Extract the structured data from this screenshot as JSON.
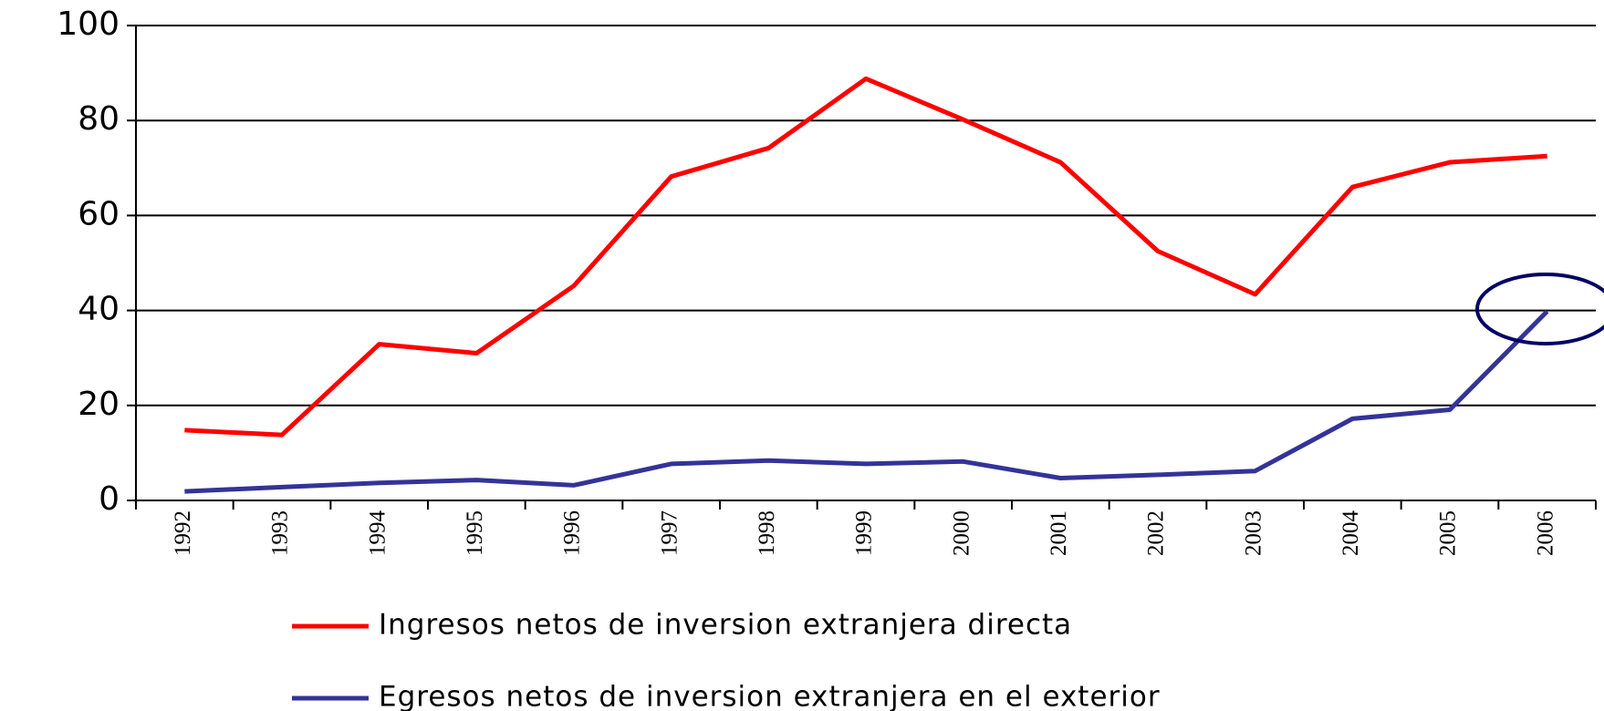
{
  "chart_data": {
    "type": "line",
    "categories": [
      "1992",
      "1993",
      "1994",
      "1995",
      "1996",
      "1997",
      "1998",
      "1999",
      "2000",
      "2001",
      "2002",
      "2003",
      "2004",
      "2005",
      "2006"
    ],
    "series": [
      {
        "name": "Ingresos netos de inversion extranjera directa",
        "color": "#ff0000",
        "values": [
          14.8,
          13.8,
          32.9,
          31,
          45.2,
          68.2,
          74.2,
          88.8,
          80.2,
          71.2,
          52.5,
          43.4,
          66,
          71.2,
          72.5
        ]
      },
      {
        "name": "Egresos netos de inversion extranjera en el exterior",
        "color": "#333399",
        "values": [
          1.9,
          2.8,
          3.7,
          4.3,
          3.2,
          7.7,
          8.4,
          7.7,
          8.2,
          4.7,
          5.4,
          6.2,
          17.2,
          19.1,
          39.8
        ]
      }
    ],
    "ylim": [
      0,
      100
    ],
    "yticks": [
      0,
      20,
      40,
      60,
      80,
      100
    ],
    "grid": true,
    "legend": "bottom"
  }
}
